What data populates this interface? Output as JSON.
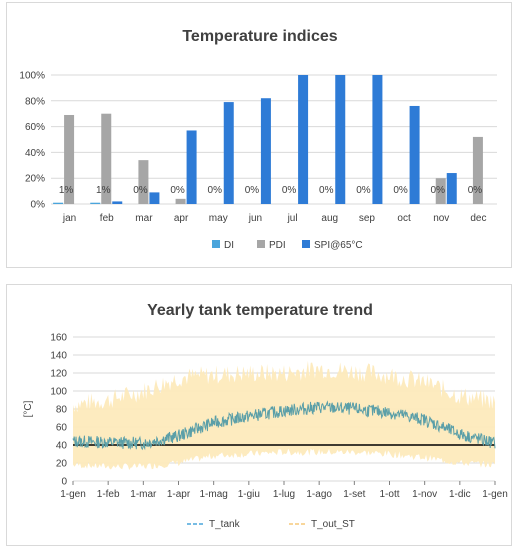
{
  "chart_data": [
    {
      "type": "bar",
      "title": "Temperature indices",
      "categories": [
        "jan",
        "feb",
        "mar",
        "apr",
        "may",
        "jun",
        "jul",
        "aug",
        "sep",
        "oct",
        "nov",
        "dec"
      ],
      "ylim": [
        0,
        100
      ],
      "yticks": [
        "0%",
        "20%",
        "40%",
        "60%",
        "80%",
        "100%"
      ],
      "grid": true,
      "legend_position": "bottom",
      "series": [
        {
          "name": "DI",
          "color": "#4aa5dc",
          "values": [
            1,
            1,
            0,
            0,
            0,
            0,
            0,
            0,
            0,
            0,
            0,
            0
          ],
          "labels": [
            "1%",
            "1%",
            "0%",
            "0%",
            "0%",
            "0%",
            "0%",
            "0%",
            "0%",
            "0%",
            "0%",
            "0%"
          ]
        },
        {
          "name": "PDI",
          "color": "#a6a6a6",
          "values": [
            69,
            70,
            34,
            4,
            0,
            0,
            0,
            0,
            0,
            0,
            20,
            52
          ]
        },
        {
          "name": "SPI@65°C",
          "color": "#2e7bd6",
          "values": [
            0,
            2,
            9,
            57,
            79,
            82,
            100,
            100,
            100,
            76,
            24,
            0
          ]
        }
      ]
    },
    {
      "type": "line",
      "title": "Yearly tank temperature trend",
      "ylabel": "[°C]",
      "ylim": [
        0,
        160
      ],
      "yticks": [
        "0",
        "20",
        "40",
        "60",
        "80",
        "100",
        "120",
        "140",
        "160"
      ],
      "x": [
        "1-gen",
        "1-feb",
        "1-mar",
        "1-apr",
        "1-mag",
        "1-giu",
        "1-lug",
        "1-ago",
        "1-set",
        "1-ott",
        "1-nov",
        "1-dic",
        "1-gen"
      ],
      "grid": true,
      "legend_position": "bottom",
      "series": [
        {
          "name": "T_tank",
          "color": "#5b9fa8",
          "values": [
            44,
            43,
            42,
            50,
            65,
            72,
            78,
            82,
            80,
            76,
            68,
            52,
            42
          ]
        },
        {
          "name": "T_out_ST",
          "color": "#fde9b8",
          "band_low": [
            18,
            16,
            16,
            20,
            28,
            30,
            32,
            32,
            32,
            30,
            26,
            20,
            18
          ],
          "band_high": [
            85,
            90,
            100,
            115,
            118,
            120,
            120,
            125,
            122,
            118,
            110,
            95,
            88
          ]
        }
      ],
      "reference_line": 40
    }
  ]
}
